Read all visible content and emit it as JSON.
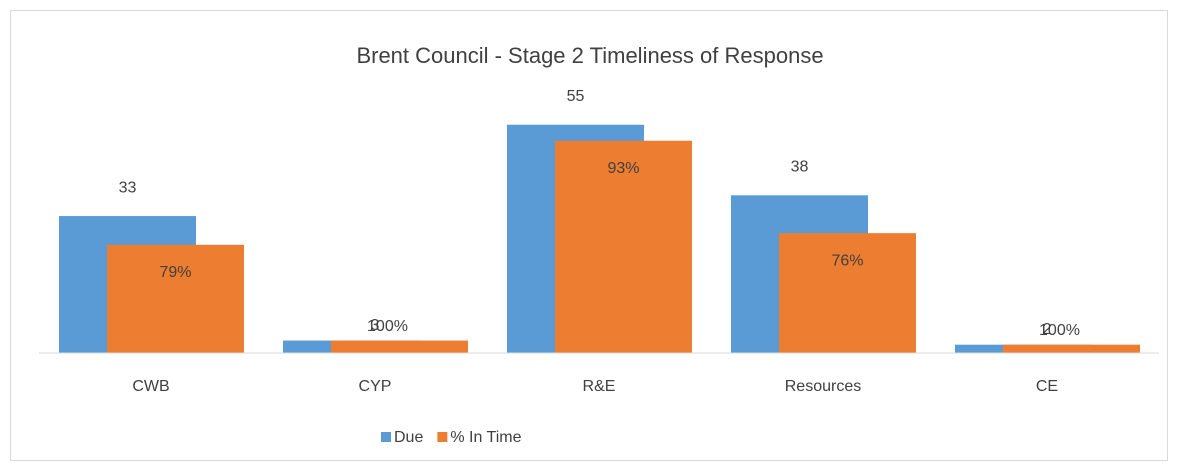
{
  "chart_data": {
    "type": "bar",
    "title": "Brent Council - Stage 2 Timeliness of Response",
    "categories": [
      "CWB",
      "CYP",
      "R&E",
      "Resources",
      "CE"
    ],
    "series": [
      {
        "name": "Due",
        "color": "#5b9bd5",
        "values": [
          33,
          3,
          55,
          38,
          2
        ]
      },
      {
        "name": "% In Time",
        "color": "#ed7d31",
        "values": [
          79,
          100,
          93,
          76,
          100
        ],
        "value_labels": [
          "79%",
          "100%",
          "93%",
          "76%",
          "100%"
        ]
      }
    ],
    "ylim": [
      0,
      60
    ],
    "legend": "bottom"
  }
}
